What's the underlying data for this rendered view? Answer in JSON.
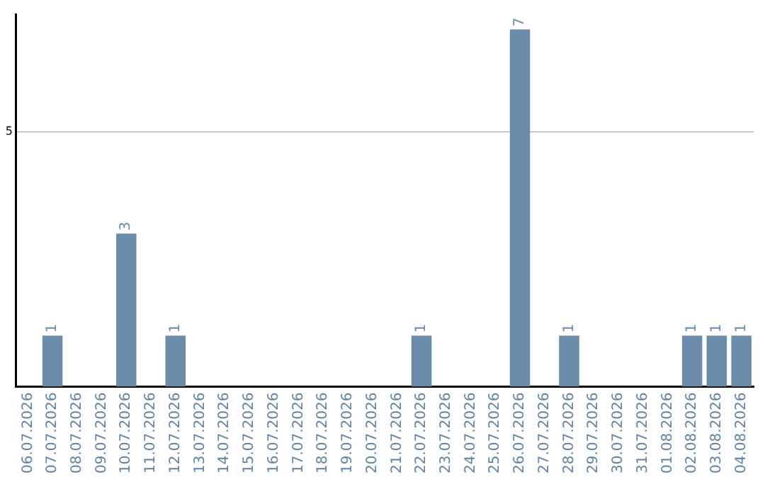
{
  "chart_data": {
    "type": "bar",
    "categories": [
      "06.07.2026",
      "07.07.2026",
      "08.07.2026",
      "09.07.2026",
      "10.07.2026",
      "11.07.2026",
      "12.07.2026",
      "13.07.2026",
      "14.07.2026",
      "15.07.2026",
      "16.07.2026",
      "17.07.2026",
      "18.07.2026",
      "19.07.2026",
      "20.07.2026",
      "21.07.2026",
      "22.07.2026",
      "23.07.2026",
      "24.07.2026",
      "25.07.2026",
      "26.07.2026",
      "27.07.2026",
      "28.07.2026",
      "29.07.2026",
      "30.07.2026",
      "31.07.2026",
      "01.08.2026",
      "02.08.2026",
      "03.08.2026",
      "04.08.2026"
    ],
    "values": [
      0,
      1,
      0,
      0,
      3,
      0,
      1,
      0,
      0,
      0,
      0,
      0,
      0,
      0,
      0,
      0,
      1,
      0,
      0,
      0,
      7,
      0,
      1,
      0,
      0,
      0,
      0,
      1,
      1,
      1
    ],
    "value_labels": [
      null,
      "1",
      null,
      null,
      "3",
      null,
      "1",
      null,
      null,
      null,
      null,
      null,
      null,
      null,
      null,
      null,
      "1",
      null,
      null,
      null,
      "7",
      null,
      "1",
      null,
      null,
      null,
      null,
      "1",
      "1",
      "1"
    ],
    "color": "#6a8caa",
    "ylim": [
      0,
      7.3
    ],
    "yticks": [
      5
    ],
    "grid": "y",
    "legend": false
  }
}
